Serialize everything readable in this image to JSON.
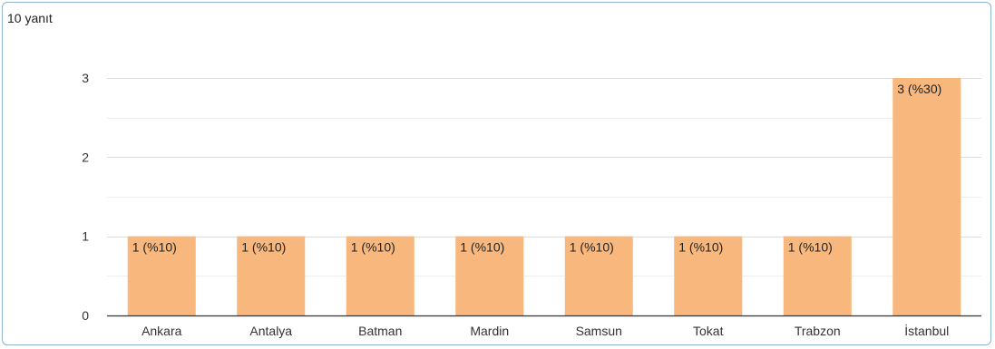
{
  "header": {
    "response_count": "10 yanıt"
  },
  "colors": {
    "bar": "#f7b77d",
    "gridline": "#e6e6e6",
    "axis": "#333333",
    "frame_border": "#8fb4cf"
  },
  "chart_data": {
    "type": "bar",
    "categories": [
      "Ankara",
      "Antalya",
      "Batman",
      "Mardin",
      "Samsun",
      "Tokat",
      "Trabzon",
      "İstanbul"
    ],
    "values": [
      1,
      1,
      1,
      1,
      1,
      1,
      1,
      3
    ],
    "data_labels": [
      "1 (%10)",
      "1 (%10)",
      "1 (%10)",
      "1 (%10)",
      "1 (%10)",
      "1 (%10)",
      "1 (%10)",
      "3 (%30)"
    ],
    "title": "",
    "xlabel": "",
    "ylabel": "",
    "ylim": [
      0,
      3
    ],
    "yticks": [
      0,
      1,
      2,
      3
    ],
    "grid": true,
    "legend": "none"
  }
}
